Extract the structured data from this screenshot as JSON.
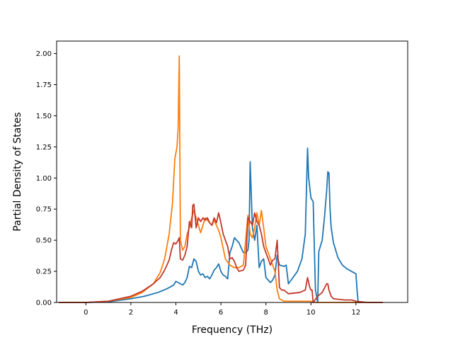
{
  "chart_data": {
    "type": "line",
    "title": "",
    "xlabel": "Frequency (THz)",
    "ylabel": "Partial Density of States",
    "xlim": [
      -1.3,
      14.3
    ],
    "ylim": [
      0.0,
      2.1
    ],
    "grid": false,
    "legend": "none",
    "x_ticks": [
      "0",
      "2",
      "4",
      "6",
      "8",
      "10",
      "12"
    ],
    "y_ticks": [
      "0.00",
      "0.25",
      "0.50",
      "0.75",
      "1.00",
      "1.25",
      "1.50",
      "1.75",
      "2.00"
    ],
    "series": [
      {
        "color": "#1f77b4",
        "x": [
          -1.2,
          0,
          1.0,
          2.0,
          2.6,
          3.2,
          3.6,
          3.9,
          4.0,
          4.1,
          4.2,
          4.3,
          4.4,
          4.5,
          4.6,
          4.7,
          4.8,
          4.9,
          5.0,
          5.1,
          5.2,
          5.3,
          5.4,
          5.5,
          5.6,
          5.7,
          5.8,
          5.9,
          6.0,
          6.1,
          6.2,
          6.3,
          6.4,
          6.5,
          6.6,
          6.8,
          7.0,
          7.1,
          7.2,
          7.25,
          7.3,
          7.4,
          7.5,
          7.6,
          7.7,
          7.8,
          7.9,
          8.0,
          8.2,
          8.3,
          8.4,
          8.5,
          8.6,
          8.8,
          8.9,
          9.0,
          9.2,
          9.4,
          9.6,
          9.75,
          9.85,
          9.9,
          10.0,
          10.1,
          10.2,
          10.3,
          10.35,
          10.5,
          10.6,
          10.7,
          10.75,
          10.8,
          10.85,
          10.9,
          11.0,
          11.2,
          11.4,
          11.6,
          11.8,
          12.0,
          12.05,
          12.1,
          12.5,
          13.2
        ],
        "y": [
          0.0,
          0.0,
          0.005,
          0.03,
          0.05,
          0.08,
          0.11,
          0.14,
          0.17,
          0.16,
          0.15,
          0.14,
          0.16,
          0.2,
          0.29,
          0.28,
          0.35,
          0.33,
          0.25,
          0.22,
          0.23,
          0.2,
          0.21,
          0.19,
          0.22,
          0.26,
          0.28,
          0.31,
          0.25,
          0.22,
          0.21,
          0.19,
          0.4,
          0.45,
          0.52,
          0.48,
          0.4,
          0.4,
          0.42,
          0.5,
          1.13,
          0.6,
          0.5,
          0.62,
          0.28,
          0.33,
          0.35,
          0.2,
          0.16,
          0.18,
          0.22,
          0.38,
          0.3,
          0.29,
          0.3,
          0.15,
          0.2,
          0.25,
          0.35,
          0.55,
          1.24,
          1.0,
          0.84,
          0.81,
          0.1,
          0.0,
          0.41,
          0.5,
          0.68,
          0.9,
          1.05,
          1.04,
          0.75,
          0.6,
          0.48,
          0.36,
          0.3,
          0.27,
          0.25,
          0.23,
          0.1,
          0.0,
          0.0,
          0.0
        ]
      },
      {
        "color": "#ff7f0e",
        "x": [
          -1.2,
          0,
          1.0,
          2.0,
          2.5,
          3.0,
          3.3,
          3.5,
          3.7,
          3.85,
          3.95,
          4.0,
          4.05,
          4.1,
          4.15,
          4.2,
          4.3,
          4.4,
          4.5,
          4.6,
          4.7,
          4.8,
          4.9,
          5.0,
          5.1,
          5.2,
          5.3,
          5.4,
          5.5,
          5.6,
          5.7,
          5.8,
          5.9,
          6.0,
          6.2,
          6.4,
          6.6,
          6.8,
          7.0,
          7.2,
          7.3,
          7.4,
          7.5,
          7.6,
          7.7,
          7.8,
          7.9,
          8.0,
          8.2,
          8.4,
          8.5,
          8.6,
          8.8,
          9.0,
          9.5,
          10.0,
          10.2,
          10.4,
          11.0,
          12.0,
          12.5,
          13.2
        ],
        "y": [
          0.0,
          0.0,
          0.01,
          0.04,
          0.08,
          0.15,
          0.24,
          0.35,
          0.55,
          0.8,
          1.15,
          1.2,
          1.25,
          1.4,
          1.98,
          0.5,
          0.42,
          0.45,
          0.55,
          0.6,
          0.68,
          0.74,
          0.68,
          0.62,
          0.56,
          0.62,
          0.68,
          0.66,
          0.64,
          0.62,
          0.66,
          0.62,
          0.58,
          0.52,
          0.35,
          0.3,
          0.28,
          0.28,
          0.3,
          0.7,
          0.55,
          0.52,
          0.6,
          0.72,
          0.62,
          0.74,
          0.6,
          0.45,
          0.35,
          0.25,
          0.1,
          0.03,
          0.01,
          0.01,
          0.01,
          0.01,
          0.0,
          0.0,
          0.0,
          0.0,
          0.0,
          0.0
        ]
      },
      {
        "color": "#c0392b",
        "x": [
          -1.2,
          0,
          1.0,
          2.0,
          2.5,
          3.0,
          3.3,
          3.5,
          3.7,
          3.8,
          3.9,
          4.0,
          4.1,
          4.15,
          4.2,
          4.3,
          4.4,
          4.5,
          4.6,
          4.7,
          4.75,
          4.8,
          4.9,
          5.0,
          5.1,
          5.2,
          5.3,
          5.4,
          5.5,
          5.6,
          5.7,
          5.8,
          5.9,
          6.0,
          6.1,
          6.2,
          6.3,
          6.4,
          6.5,
          6.6,
          6.7,
          6.8,
          7.0,
          7.1,
          7.2,
          7.3,
          7.4,
          7.5,
          7.6,
          7.7,
          7.8,
          7.9,
          8.0,
          8.1,
          8.2,
          8.3,
          8.4,
          8.5,
          8.6,
          8.7,
          8.8,
          9.0,
          9.5,
          9.75,
          9.85,
          9.95,
          10.0,
          10.05,
          10.1,
          10.3,
          10.5,
          10.7,
          10.75,
          10.8,
          10.9,
          11.0,
          11.5,
          11.8,
          12.0,
          12.5,
          13.2
        ],
        "y": [
          0.0,
          0.0,
          0.01,
          0.05,
          0.09,
          0.15,
          0.2,
          0.26,
          0.34,
          0.42,
          0.48,
          0.47,
          0.5,
          0.52,
          0.35,
          0.34,
          0.38,
          0.45,
          0.65,
          0.6,
          0.78,
          0.79,
          0.6,
          0.68,
          0.65,
          0.68,
          0.66,
          0.68,
          0.64,
          0.62,
          0.68,
          0.64,
          0.72,
          0.64,
          0.55,
          0.5,
          0.45,
          0.35,
          0.36,
          0.33,
          0.28,
          0.25,
          0.26,
          0.3,
          0.68,
          0.65,
          0.62,
          0.72,
          0.65,
          0.62,
          0.55,
          0.45,
          0.4,
          0.35,
          0.3,
          0.34,
          0.35,
          0.5,
          0.12,
          0.1,
          0.1,
          0.07,
          0.08,
          0.1,
          0.2,
          0.12,
          0.1,
          0.1,
          0.0,
          0.05,
          0.08,
          0.15,
          0.15,
          0.1,
          0.05,
          0.03,
          0.02,
          0.02,
          0.01,
          0.0,
          0.0
        ]
      }
    ]
  }
}
